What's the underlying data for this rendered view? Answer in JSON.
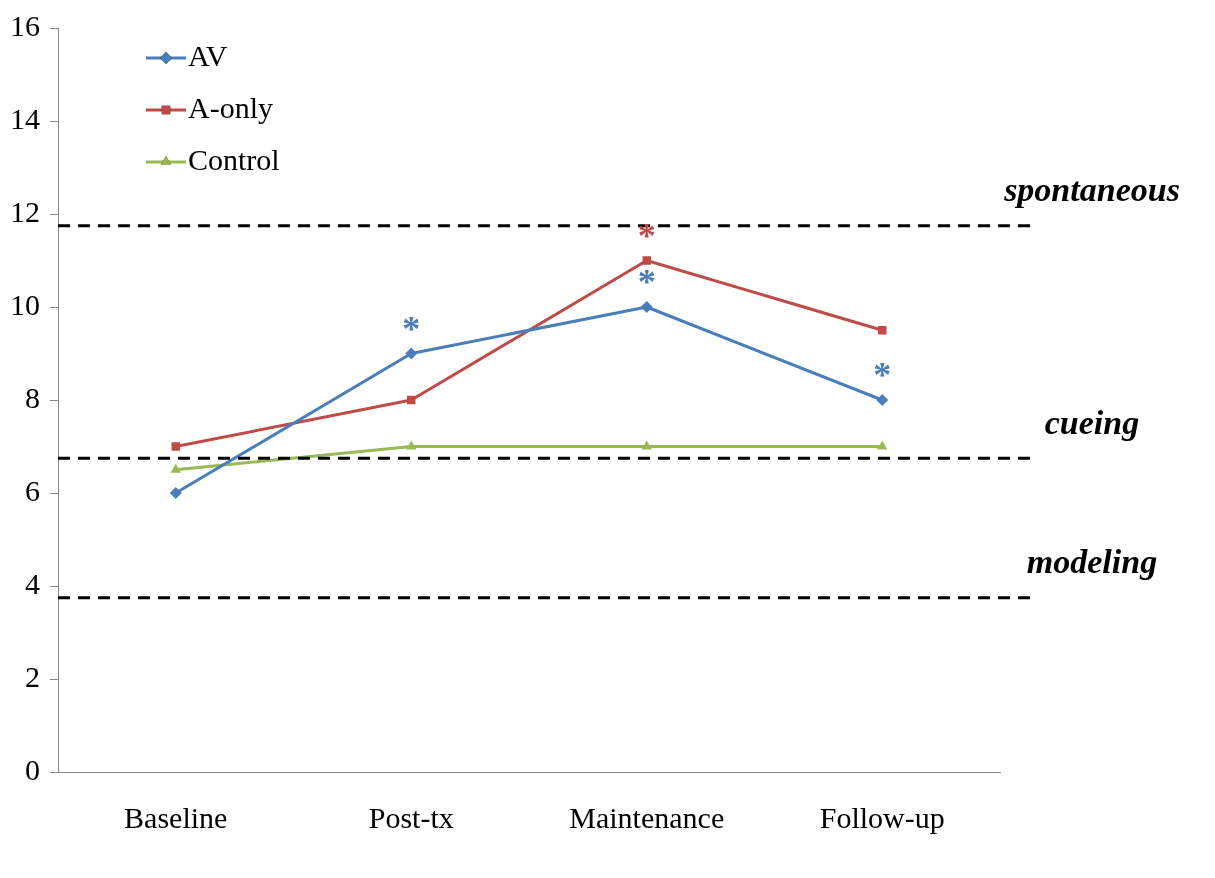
{
  "chart_data": {
    "type": "line",
    "categories": [
      "Baseline",
      "Post-tx",
      "Maintenance",
      "Follow-up"
    ],
    "series": [
      {
        "name": "AV",
        "color": "#4a7ebb",
        "marker": "diamond",
        "values": [
          6,
          9,
          10,
          8
        ]
      },
      {
        "name": "A-only",
        "color": "#be4b48",
        "marker": "square",
        "values": [
          7,
          8,
          11,
          9.5
        ]
      },
      {
        "name": "Control",
        "color": "#98b954",
        "marker": "triangle",
        "values": [
          6.5,
          7,
          7,
          7
        ]
      }
    ],
    "ylim": [
      0,
      16
    ],
    "yticks": [
      0,
      2,
      4,
      6,
      8,
      10,
      12,
      14,
      16
    ],
    "grid": false,
    "legend": "top left",
    "line_style": "solid",
    "ref_lines": [
      {
        "axis": "y",
        "value": 11.75,
        "label": "spontaneous",
        "color": "#000000",
        "line_style": "dashed"
      },
      {
        "axis": "y",
        "value": 6.75,
        "label": "cueing",
        "color": "#000000",
        "line_style": "dashed"
      },
      {
        "axis": "y",
        "value": 3.75,
        "label": "modeling",
        "color": "#000000",
        "line_style": "dashed"
      }
    ],
    "annotations": [
      {
        "text": "*",
        "x": "Post-tx",
        "y": 9
      },
      {
        "text": "*",
        "x": "Maintenance",
        "y": 10
      },
      {
        "text": "*",
        "x": "Maintenance",
        "y": 11
      },
      {
        "text": "*",
        "x": "Follow-up",
        "y": 8
      }
    ]
  }
}
